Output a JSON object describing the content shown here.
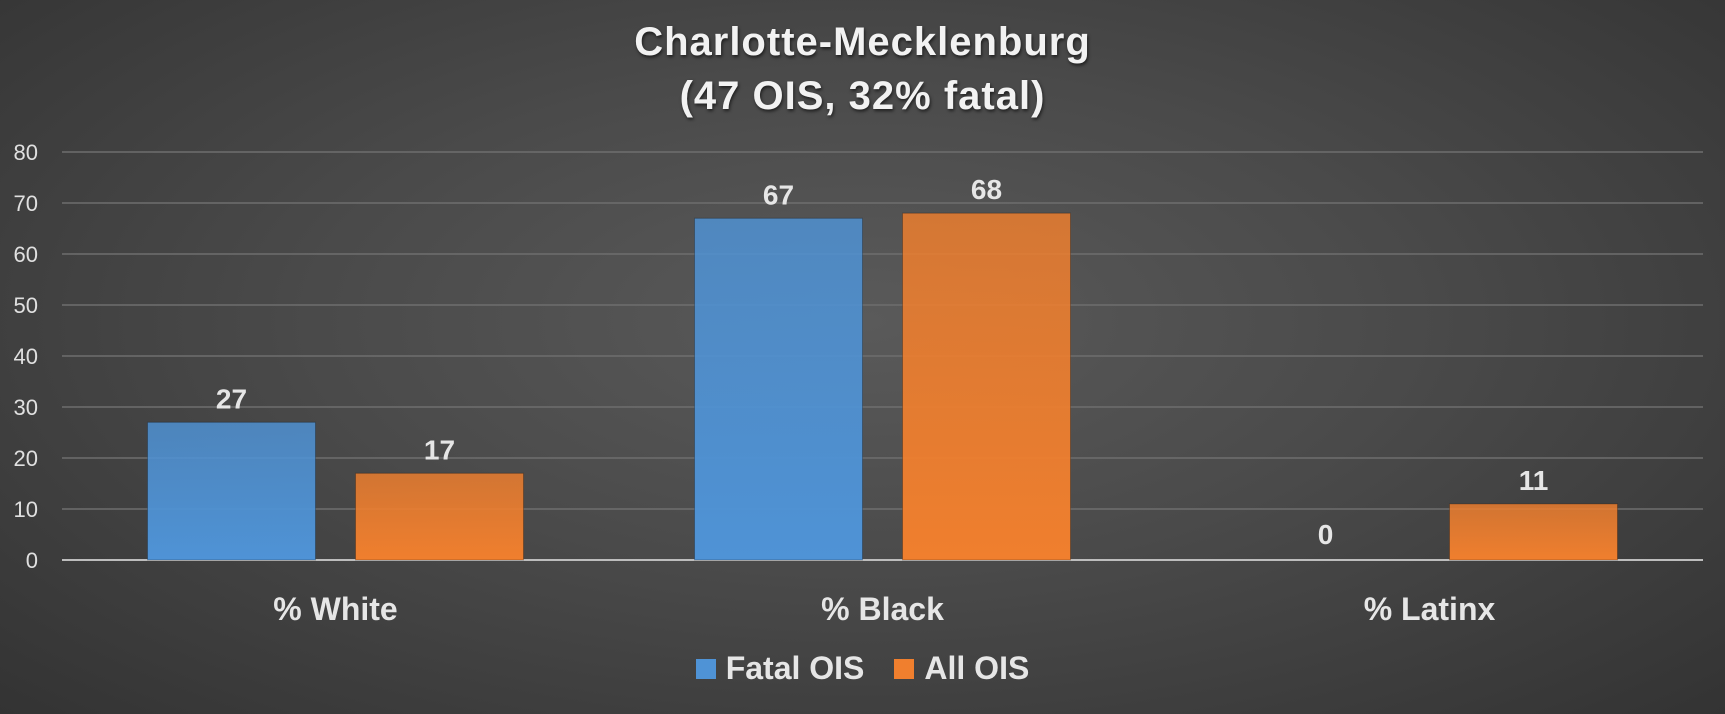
{
  "chart_data": {
    "type": "bar",
    "title_lines": [
      "Charlotte-Mecklenburg",
      "(47 OIS, 32% fatal)"
    ],
    "categories": [
      "% White",
      "% Black",
      "% Latinx"
    ],
    "series": [
      {
        "name": "Fatal OIS",
        "values": [
          27,
          67,
          0
        ],
        "color": "#4f93d6"
      },
      {
        "name": "All OIS",
        "values": [
          17,
          68,
          11
        ],
        "color": "#f07f2e"
      }
    ],
    "ylim": [
      0,
      80
    ],
    "yticks": [
      0,
      10,
      20,
      30,
      40,
      50,
      60,
      70,
      80
    ],
    "grid": true,
    "legend_position": "bottom"
  }
}
